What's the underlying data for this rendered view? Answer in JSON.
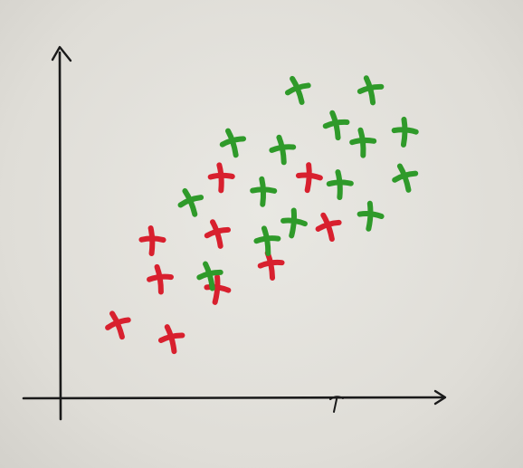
{
  "chart_data": {
    "type": "scatter",
    "title": "",
    "xlabel": "",
    "ylabel": "",
    "grid": false,
    "legend": "none",
    "xlim": [
      0,
      10
    ],
    "ylim": [
      0,
      10
    ],
    "series": [
      {
        "color": "#d8202e",
        "points": [
          [
            1.5,
            2.1
          ],
          [
            2.9,
            1.7
          ],
          [
            2.6,
            3.4
          ],
          [
            2.4,
            4.5
          ],
          [
            4.1,
            3.1
          ],
          [
            4.1,
            4.7
          ],
          [
            5.5,
            3.8
          ],
          [
            4.2,
            6.3
          ],
          [
            6.5,
            6.3
          ],
          [
            7.0,
            4.9
          ]
        ]
      },
      {
        "color": "#2f9a2a",
        "points": [
          [
            3.4,
            5.6
          ],
          [
            3.9,
            3.5
          ],
          [
            5.4,
            4.5
          ],
          [
            5.3,
            5.9
          ],
          [
            6.1,
            5.0
          ],
          [
            4.5,
            7.3
          ],
          [
            5.8,
            7.1
          ],
          [
            7.3,
            6.1
          ],
          [
            8.1,
            5.2
          ],
          [
            9.0,
            6.3
          ],
          [
            7.2,
            7.8
          ],
          [
            7.9,
            7.3
          ],
          [
            9.0,
            7.6
          ],
          [
            6.2,
            8.8
          ],
          [
            8.1,
            8.8
          ]
        ]
      }
    ]
  }
}
